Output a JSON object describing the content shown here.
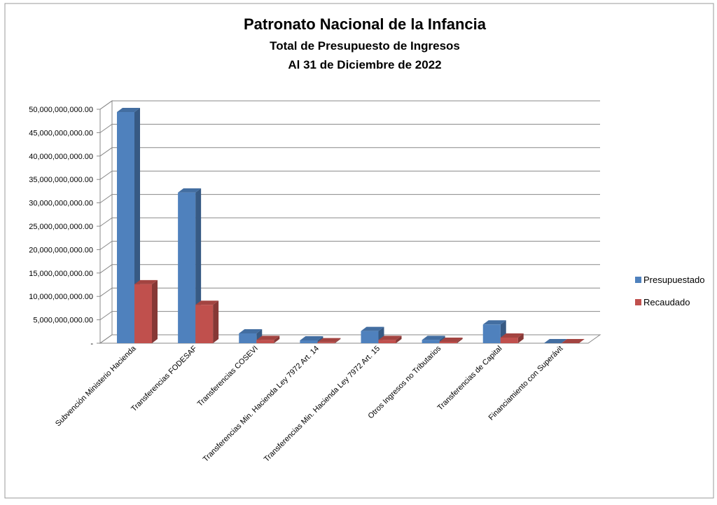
{
  "chart_data": {
    "type": "bar3d",
    "title": "Patronato Nacional de la Infancia",
    "subtitle": "Total de Presupuesto de Ingresos",
    "subtitle2": "Al 31 de Diciembre de 2022",
    "categories": [
      "Subvención Ministerio Hacienda",
      "Transferencias FODESAF",
      "Transferencias COSEVI",
      "Transferencias Min. Hacienda Ley 7972 Art. 14",
      "Transferencias Min. Hacienda Ley 7972 Art. 15",
      "Otros Ingresos no Tributarios",
      "Transferencias de Capital",
      "Financiamiento con Superávit"
    ],
    "series": [
      {
        "name": "Presupuestado",
        "color": "#4f81bd",
        "values": [
          49400000000,
          32200000000,
          2100000000,
          600000000,
          2600000000,
          700000000,
          4000000000,
          0
        ]
      },
      {
        "name": "Recaudado",
        "color": "#c0504d",
        "values": [
          12600000000,
          8200000000,
          700000000,
          200000000,
          700000000,
          300000000,
          1200000000,
          0
        ]
      }
    ],
    "ylim": [
      0,
      50000000000
    ],
    "yticks": [
      {
        "value": 0,
        "label": "-"
      },
      {
        "value": 5000000000,
        "label": "5,000,000,000.00"
      },
      {
        "value": 10000000000,
        "label": "10,000,000,000.00"
      },
      {
        "value": 15000000000,
        "label": "15,000,000,000.00"
      },
      {
        "value": 20000000000,
        "label": "20,000,000,000.00"
      },
      {
        "value": 25000000000,
        "label": "25,000,000,000.00"
      },
      {
        "value": 30000000000,
        "label": "30,000,000,000.00"
      },
      {
        "value": 35000000000,
        "label": "35,000,000,000.00"
      },
      {
        "value": 40000000000,
        "label": "40,000,000,000.00"
      },
      {
        "value": 45000000000,
        "label": "45,000,000,000.00"
      },
      {
        "value": 50000000000,
        "label": "50,000,000,000.00"
      }
    ],
    "grid": true,
    "legend": "right"
  }
}
